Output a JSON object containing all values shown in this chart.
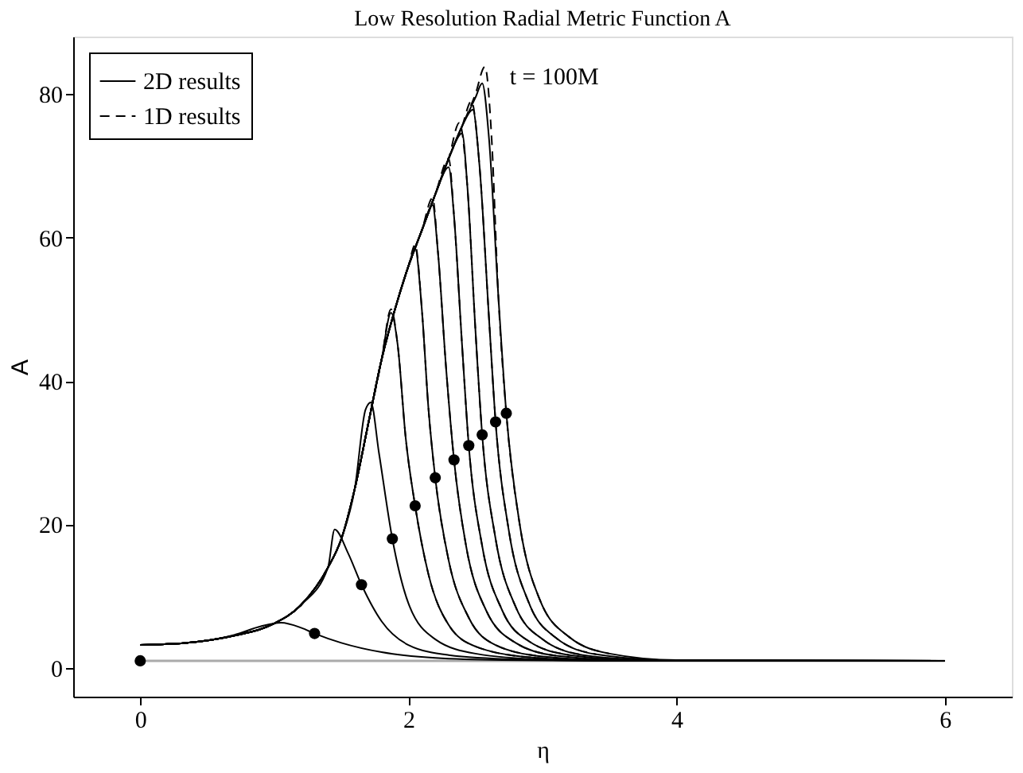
{
  "chart_data": {
    "type": "line",
    "title": "Low Resolution Radial Metric Function A",
    "xlabel": "η",
    "ylabel": "A",
    "xlim": [
      -0.5,
      6.5
    ],
    "ylim": [
      -4,
      88
    ],
    "xticks": [
      0,
      2,
      4,
      6
    ],
    "yticks": [
      0,
      20,
      40,
      60,
      80
    ],
    "grid": false,
    "legend": "top left",
    "marker": "none",
    "annotations": [
      "t = 100M"
    ],
    "series": [
      {
        "color": "#aaaaaa",
        "line_style": "solid",
        "x": [
          0,
          6
        ],
        "values": [
          1,
          1
        ]
      },
      {
        "name": "2D results",
        "color": "#000000",
        "line_style": "solid",
        "x": [
          0,
          0.4,
          0.7,
          0.9,
          1.05,
          1.2,
          1.3,
          1.5,
          1.8,
          2.2,
          2.7,
          3.5,
          6
        ],
        "values": [
          3.2,
          3.6,
          4.6,
          5.8,
          6.3,
          5.6,
          4.8,
          3.5,
          2.2,
          1.4,
          1.1,
          1.0,
          1.0
        ]
      },
      {
        "color": "#000000",
        "line_style": "solid",
        "x": [
          0,
          0.4,
          0.7,
          1.0,
          1.2,
          1.4,
          1.45,
          1.55,
          1.65,
          1.8,
          2.0,
          2.3,
          2.8,
          3.5,
          6
        ],
        "values": [
          3.2,
          3.6,
          4.5,
          6.2,
          8.8,
          14,
          19.3,
          16,
          11.6,
          6.5,
          3.2,
          1.8,
          1.2,
          1.0,
          1.0
        ]
      },
      {
        "color": "#000000",
        "line_style": "solid",
        "x": [
          0,
          0.4,
          0.7,
          1.0,
          1.2,
          1.4,
          1.5,
          1.6,
          1.68,
          1.72,
          1.78,
          1.88,
          2.0,
          2.2,
          2.5,
          3.0,
          3.8,
          6
        ],
        "values": [
          3.2,
          3.6,
          4.5,
          6.2,
          8.8,
          14,
          18,
          25,
          36,
          37,
          30,
          18,
          9,
          4,
          2,
          1.2,
          1.0,
          1.0
        ]
      },
      {
        "color": "#000000",
        "line_style": "solid",
        "x": [
          0,
          0.4,
          0.7,
          1.0,
          1.2,
          1.4,
          1.5,
          1.6,
          1.7,
          1.8,
          1.87,
          1.92,
          1.98,
          2.05,
          2.15,
          2.3,
          2.5,
          2.9,
          3.5,
          6
        ],
        "values": [
          3.2,
          3.6,
          4.5,
          6.2,
          8.8,
          14,
          18,
          25,
          34,
          43,
          49.5,
          45,
          32,
          22.6,
          13,
          6,
          3,
          1.5,
          1.05,
          1.0
        ]
      },
      {
        "color": "#000000",
        "line_style": "solid",
        "x": [
          0,
          0.4,
          0.7,
          1.0,
          1.2,
          1.4,
          1.5,
          1.6,
          1.7,
          1.8,
          1.9,
          2.0,
          2.05,
          2.1,
          2.15,
          2.2,
          2.3,
          2.45,
          2.65,
          3.0,
          3.6,
          6
        ],
        "values": [
          3.2,
          3.6,
          4.5,
          6.2,
          8.8,
          14,
          18,
          25,
          34,
          43,
          50,
          56,
          58.5,
          50,
          36,
          26.5,
          15,
          7,
          3.2,
          1.6,
          1.05,
          1.0
        ]
      },
      {
        "color": "#000000",
        "line_style": "solid",
        "x": [
          0,
          0.4,
          0.7,
          1.0,
          1.2,
          1.4,
          1.5,
          1.6,
          1.7,
          1.8,
          1.9,
          2.0,
          2.1,
          2.18,
          2.22,
          2.28,
          2.34,
          2.43,
          2.58,
          2.8,
          3.1,
          3.7,
          6
        ],
        "values": [
          3.2,
          3.6,
          4.5,
          6.2,
          8.8,
          14,
          18,
          25,
          34,
          43,
          50,
          56,
          61,
          64.5,
          58,
          42,
          29,
          17,
          8,
          3.5,
          1.7,
          1.05,
          1.0
        ]
      },
      {
        "color": "#000000",
        "line_style": "solid",
        "x": [
          0,
          0.4,
          0.7,
          1.0,
          1.2,
          1.4,
          1.5,
          1.6,
          1.7,
          1.8,
          1.9,
          2.0,
          2.1,
          2.2,
          2.3,
          2.34,
          2.4,
          2.45,
          2.55,
          2.7,
          2.9,
          3.2,
          3.8,
          6
        ],
        "values": [
          3.2,
          3.6,
          4.5,
          6.2,
          8.8,
          14,
          18,
          25,
          34,
          43,
          50,
          56,
          61,
          66,
          69.8,
          63,
          45,
          31,
          17,
          8,
          3.7,
          1.8,
          1.05,
          1.0
        ]
      },
      {
        "color": "#000000",
        "line_style": "solid",
        "x": [
          0,
          0.4,
          0.7,
          1.0,
          1.2,
          1.4,
          1.5,
          1.6,
          1.7,
          1.8,
          1.9,
          2.0,
          2.1,
          2.2,
          2.3,
          2.4,
          2.44,
          2.5,
          2.55,
          2.65,
          2.8,
          3.0,
          3.3,
          3.9,
          6
        ],
        "values": [
          3.2,
          3.6,
          4.5,
          6.2,
          8.8,
          14,
          18,
          25,
          34,
          43,
          50,
          56,
          61,
          66,
          71,
          74.5,
          67,
          47,
          32.5,
          18,
          8.5,
          4,
          1.8,
          1.05,
          1.0
        ]
      },
      {
        "color": "#000000",
        "line_style": "solid",
        "x": [
          0,
          0.4,
          0.7,
          1.0,
          1.2,
          1.4,
          1.5,
          1.6,
          1.7,
          1.8,
          1.9,
          2.0,
          2.1,
          2.2,
          2.3,
          2.4,
          2.48,
          2.53,
          2.6,
          2.65,
          2.75,
          2.9,
          3.1,
          3.4,
          4.0,
          6
        ],
        "values": [
          3.2,
          3.6,
          4.5,
          6.2,
          8.8,
          14,
          18,
          25,
          34,
          43,
          50,
          56,
          61,
          66,
          71,
          75.5,
          77.8,
          70,
          49,
          34.3,
          19,
          9,
          4.2,
          1.9,
          1.05,
          1.0
        ]
      },
      {
        "color": "#000000",
        "line_style": "solid",
        "x": [
          0,
          0.4,
          0.7,
          1.0,
          1.2,
          1.4,
          1.5,
          1.6,
          1.7,
          1.8,
          1.9,
          2.0,
          2.1,
          2.2,
          2.3,
          2.4,
          2.5,
          2.55,
          2.6,
          2.67,
          2.73,
          2.83,
          2.98,
          3.2,
          3.5,
          4.0,
          6
        ],
        "values": [
          3.2,
          3.6,
          4.5,
          6.2,
          8.8,
          14,
          18,
          25,
          34,
          43,
          50,
          56,
          61,
          66,
          71,
          75.5,
          79.5,
          81.5,
          74,
          52,
          35.5,
          20,
          9.5,
          4.3,
          2,
          1.1,
          1.0
        ]
      },
      {
        "name": "1D results",
        "color": "#000000",
        "line_style": "dashed",
        "x": [
          1.6,
          1.7,
          1.8,
          1.87,
          1.92,
          1.98,
          2.05,
          2.15,
          2.3,
          2.5,
          2.9,
          3.5
        ],
        "values": [
          25,
          34,
          43,
          50,
          45,
          32,
          22.6,
          13,
          6,
          3,
          1.5,
          1.05
        ]
      },
      {
        "color": "#000000",
        "line_style": "dashed",
        "x": [
          1.7,
          1.8,
          1.9,
          2.0,
          2.05,
          2.1,
          2.15,
          2.2,
          2.3,
          2.45,
          2.65,
          3.0
        ],
        "values": [
          34,
          43,
          50,
          56,
          59,
          50,
          36,
          26.5,
          15,
          7,
          3.2,
          1.6
        ]
      },
      {
        "color": "#000000",
        "line_style": "dashed",
        "x": [
          1.8,
          1.9,
          2.0,
          2.1,
          2.18,
          2.22,
          2.28,
          2.34,
          2.43,
          2.58,
          2.8,
          3.1
        ],
        "values": [
          43,
          50,
          56,
          61,
          65.5,
          58,
          42,
          29,
          17,
          8,
          3.5,
          1.7
        ]
      },
      {
        "color": "#000000",
        "line_style": "dashed",
        "x": [
          1.9,
          2.0,
          2.1,
          2.2,
          2.3,
          2.34,
          2.4,
          2.45,
          2.55,
          2.7,
          2.9,
          3.2
        ],
        "values": [
          50,
          56,
          61,
          66,
          71,
          63,
          45,
          31,
          17,
          8,
          3.7,
          1.8
        ]
      },
      {
        "color": "#000000",
        "line_style": "dashed",
        "x": [
          2.0,
          2.1,
          2.2,
          2.3,
          2.38,
          2.44,
          2.5,
          2.55,
          2.65,
          2.8,
          3.0,
          3.3
        ],
        "values": [
          56,
          61,
          66,
          71,
          76,
          67,
          47,
          32.5,
          18,
          8.5,
          4,
          1.8
        ]
      },
      {
        "color": "#000000",
        "line_style": "dashed",
        "x": [
          2.1,
          2.2,
          2.3,
          2.4,
          2.47,
          2.53,
          2.6,
          2.65,
          2.75,
          2.9,
          3.1,
          3.4
        ],
        "values": [
          61,
          66,
          71,
          75.5,
          79,
          70,
          49,
          34.3,
          19,
          9,
          4.2,
          1.9
        ]
      },
      {
        "color": "#000000",
        "line_style": "dashed",
        "x": [
          2.2,
          2.3,
          2.4,
          2.5,
          2.57,
          2.62,
          2.67,
          2.73,
          2.83,
          2.98,
          3.2,
          3.5
        ],
        "values": [
          66,
          71,
          75.5,
          80,
          83.8,
          74,
          52,
          35.5,
          20,
          9.5,
          4.3,
          2
        ]
      },
      {
        "type": "scatter",
        "color": "#000000",
        "marker": "circle",
        "x": [
          0,
          1.3,
          1.65,
          1.88,
          2.05,
          2.2,
          2.34,
          2.45,
          2.55,
          2.65,
          2.73
        ],
        "values": [
          1,
          4.8,
          11.6,
          18,
          22.6,
          26.5,
          29,
          31,
          32.5,
          34.3,
          35.5
        ]
      }
    ]
  }
}
